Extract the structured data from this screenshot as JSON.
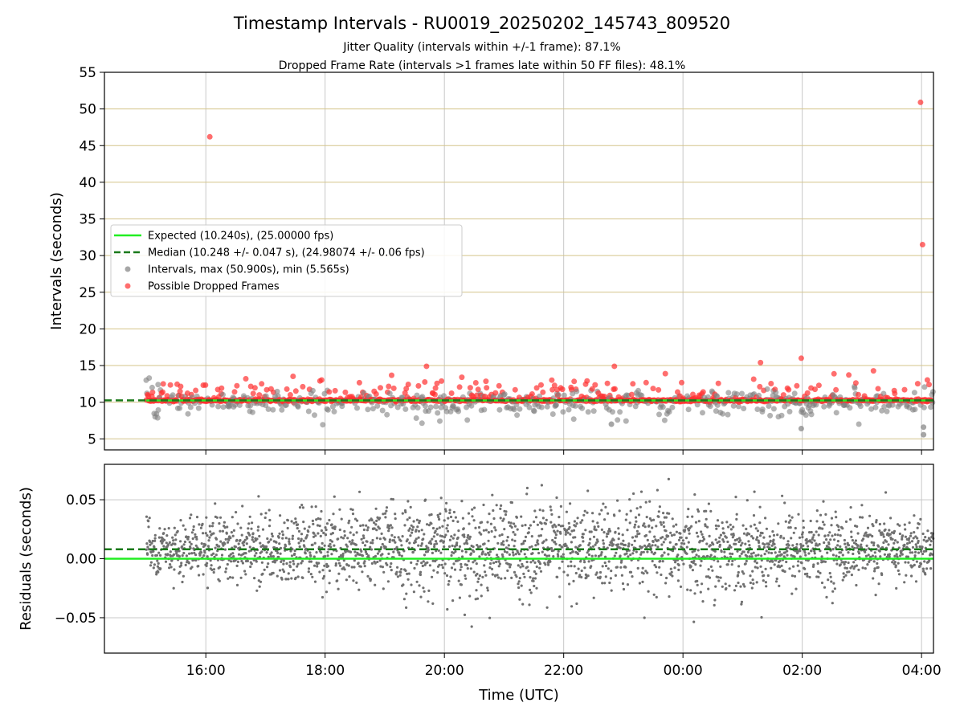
{
  "figure": {
    "title": "Timestamp Intervals - RU0019_20250202_145743_809520",
    "subtitle_1": "Jitter Quality (intervals within +/-1 frame): 87.1%",
    "subtitle_2": "Dropped Frame Rate (intervals >1 frames late within 50 FF files): 48.1%"
  },
  "chart_data": [
    {
      "id": "intervals",
      "type": "scatter",
      "xlabel": "",
      "ylabel": "Intervals (seconds)",
      "x_is_time": true,
      "x_range": [
        "14:18",
        "04:12"
      ],
      "ylim": [
        3.5,
        55
      ],
      "yticks": [
        5,
        10,
        15,
        20,
        25,
        30,
        35,
        40,
        45,
        50,
        55
      ],
      "hgrid_color": "#d4c48a",
      "vgrid": true,
      "legend_position": "center-left",
      "expected_interval": 10.24,
      "median_interval": 10.248,
      "data_start": "15:00",
      "data_end": "04:12",
      "legend": [
        {
          "label": "Expected (10.240s), (25.00000 fps)",
          "marker": "line-solid",
          "color": "#22ee22"
        },
        {
          "label": "Median (10.248 +/- 0.047 s), (24.98074 +/- 0.06 fps)",
          "marker": "line-dashed",
          "color": "#1a7a1a"
        },
        {
          "label": "Intervals, max (50.900s), min (5.565s)",
          "marker": "dot",
          "color": "#808080"
        },
        {
          "label": "Possible Dropped Frames",
          "marker": "dot",
          "color": "#ff3030"
        }
      ],
      "outliers": [
        {
          "x": "16:04",
          "y": 46.2
        },
        {
          "x": "03:59",
          "y": 50.9
        },
        {
          "x": "04:01",
          "y": 31.5
        },
        {
          "x": "01:59",
          "y": 16.0
        },
        {
          "x": "19:42",
          "y": 14.9
        },
        {
          "x": "22:51",
          "y": 14.9
        },
        {
          "x": "01:18",
          "y": 15.4
        },
        {
          "x": "04:02",
          "y": 5.565
        },
        {
          "x": "04:02",
          "y": 6.6
        },
        {
          "x": "01:59",
          "y": 6.4
        },
        {
          "x": "22:48",
          "y": 7.0
        }
      ]
    },
    {
      "id": "residuals",
      "type": "scatter",
      "xlabel": "Time (UTC)",
      "ylabel": "Residuals (seconds)",
      "x_is_time": true,
      "ylim": [
        -0.08,
        0.08
      ],
      "yticks": [
        -0.05,
        0.0,
        0.05
      ],
      "ytick_labels": [
        "−0.05",
        "0.00",
        "0.05"
      ],
      "xticks": [
        "16:00",
        "18:00",
        "20:00",
        "22:00",
        "00:00",
        "02:00",
        "04:00"
      ],
      "expected_residual": 0.0,
      "median_residual": 0.008,
      "vgrid": true,
      "hgrid": true
    }
  ],
  "colors": {
    "expected_line": "#22ee22",
    "median_line": "#1a7a1a",
    "interval_dot": "#808080",
    "dropped_dot": "#ff3030",
    "residual_dot": "#707070",
    "vgrid": "#c8c8c8",
    "axis": "#000000"
  }
}
